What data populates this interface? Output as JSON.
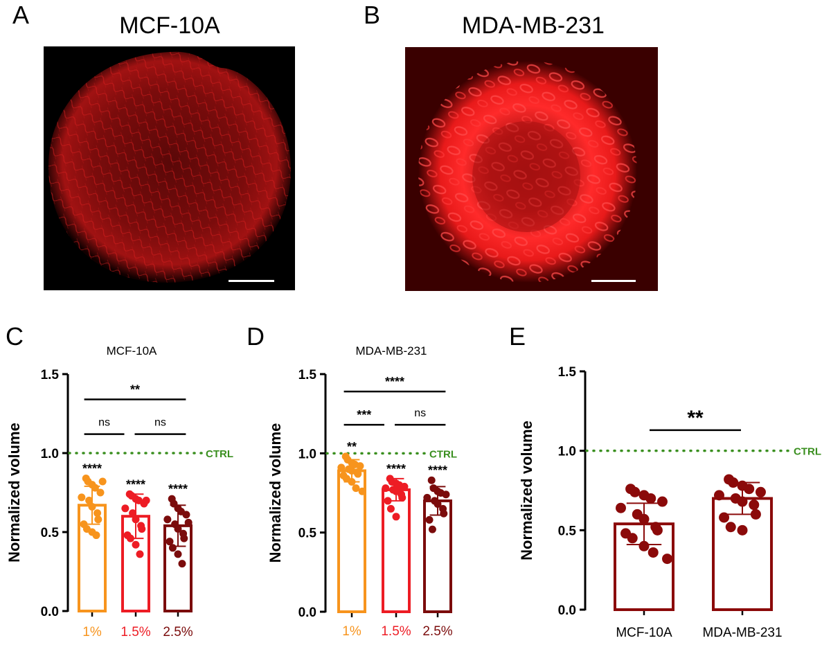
{
  "panel_a": {
    "letter": "A",
    "title": "MCF-10A",
    "image_desc": "red fluorescence micrograph, fibrous spheroid",
    "scale_bar": true
  },
  "panel_b": {
    "letter": "B",
    "title": "MDA-MB-231",
    "image_desc": "red fluorescence micrograph, rounded cell spheroid with dimmer center",
    "scale_bar": true
  },
  "colors": {
    "c1": "#f7941d",
    "c15": "#ed1c24",
    "c25": "#7b0c0c",
    "ctrl": "#3a8f1f",
    "e_bar": "#8b0a0a",
    "black": "#000000"
  },
  "chart_data": [
    {
      "panel": "C",
      "type": "bar",
      "title": "MCF-10A",
      "ylabel": "Normalized volume",
      "ylim": [
        0,
        1.5
      ],
      "yticks": [
        "0.0",
        "0.5",
        "1.0",
        "1.5"
      ],
      "categories": [
        "1%",
        "1.5%",
        "2.5%"
      ],
      "values": [
        0.67,
        0.6,
        0.54
      ],
      "errors": [
        0.12,
        0.14,
        0.13
      ],
      "points": [
        [
          0.84,
          0.82,
          0.8,
          0.78,
          0.75,
          0.72,
          0.7,
          0.66,
          0.62,
          0.58,
          0.55,
          0.52,
          0.5,
          0.48,
          0.82
        ],
        [
          0.74,
          0.73,
          0.71,
          0.7,
          0.68,
          0.65,
          0.62,
          0.58,
          0.54,
          0.52,
          0.48,
          0.46,
          0.42,
          0.36,
          0.7
        ],
        [
          0.71,
          0.68,
          0.65,
          0.63,
          0.61,
          0.58,
          0.55,
          0.52,
          0.49,
          0.46,
          0.44,
          0.4,
          0.36,
          0.3,
          0.56
        ]
      ],
      "bar_labels": [
        "****",
        "****",
        "****"
      ],
      "ctrl_value": 1.0,
      "ctrl_label": "CTRL",
      "brackets": [
        {
          "from": 0,
          "to": 1,
          "label": "ns",
          "y": 1.12
        },
        {
          "from": 1,
          "to": 2,
          "label": "ns",
          "y": 1.12
        },
        {
          "from": 0,
          "to": 2,
          "label": "**",
          "y": 1.34
        }
      ]
    },
    {
      "panel": "D",
      "type": "bar",
      "title": "MDA-MB-231",
      "ylabel": "Normalized volume",
      "ylim": [
        0,
        1.5
      ],
      "yticks": [
        "0.0",
        "0.5",
        "1.0",
        "1.5"
      ],
      "categories": [
        "1%",
        "1.5%",
        "2.5%"
      ],
      "values": [
        0.89,
        0.77,
        0.7
      ],
      "errors": [
        0.07,
        0.07,
        0.09
      ],
      "points": [
        [
          0.98,
          0.96,
          0.94,
          0.93,
          0.92,
          0.91,
          0.9,
          0.89,
          0.88,
          0.87,
          0.86,
          0.84,
          0.82,
          0.78,
          0.76
        ],
        [
          0.84,
          0.82,
          0.81,
          0.8,
          0.79,
          0.78,
          0.77,
          0.76,
          0.74,
          0.72,
          0.7,
          0.65,
          0.6
        ],
        [
          0.83,
          0.78,
          0.76,
          0.75,
          0.74,
          0.72,
          0.7,
          0.68,
          0.65,
          0.62,
          0.58,
          0.52
        ]
      ],
      "bar_labels": [
        "**",
        "****",
        "****"
      ],
      "ctrl_value": 1.0,
      "ctrl_label": "CTRL",
      "brackets": [
        {
          "from": 0,
          "to": 1,
          "label": "***",
          "y": 1.18
        },
        {
          "from": 1,
          "to": 2,
          "label": "ns",
          "y": 1.18
        },
        {
          "from": 0,
          "to": 2,
          "label": "****",
          "y": 1.39
        }
      ]
    },
    {
      "panel": "E",
      "type": "bar",
      "title": "",
      "ylabel": "Normalized volume",
      "ylim": [
        0,
        1.5
      ],
      "yticks": [
        "0.0",
        "0.5",
        "1.0",
        "1.5"
      ],
      "categories": [
        "MCF-10A",
        "MDA-MB-231"
      ],
      "values": [
        0.54,
        0.7
      ],
      "errors": [
        0.13,
        0.1
      ],
      "points": [
        [
          0.76,
          0.74,
          0.72,
          0.7,
          0.68,
          0.64,
          0.6,
          0.57,
          0.52,
          0.5,
          0.48,
          0.45,
          0.4,
          0.36,
          0.32
        ],
        [
          0.82,
          0.8,
          0.78,
          0.76,
          0.74,
          0.72,
          0.7,
          0.68,
          0.66,
          0.6,
          0.58,
          0.52,
          0.5
        ]
      ],
      "bar_labels": [
        "",
        ""
      ],
      "ctrl_value": 1.0,
      "ctrl_label": "CTRL",
      "brackets": [
        {
          "from": 0,
          "to": 1,
          "label": "**",
          "y": 1.13
        }
      ]
    }
  ]
}
